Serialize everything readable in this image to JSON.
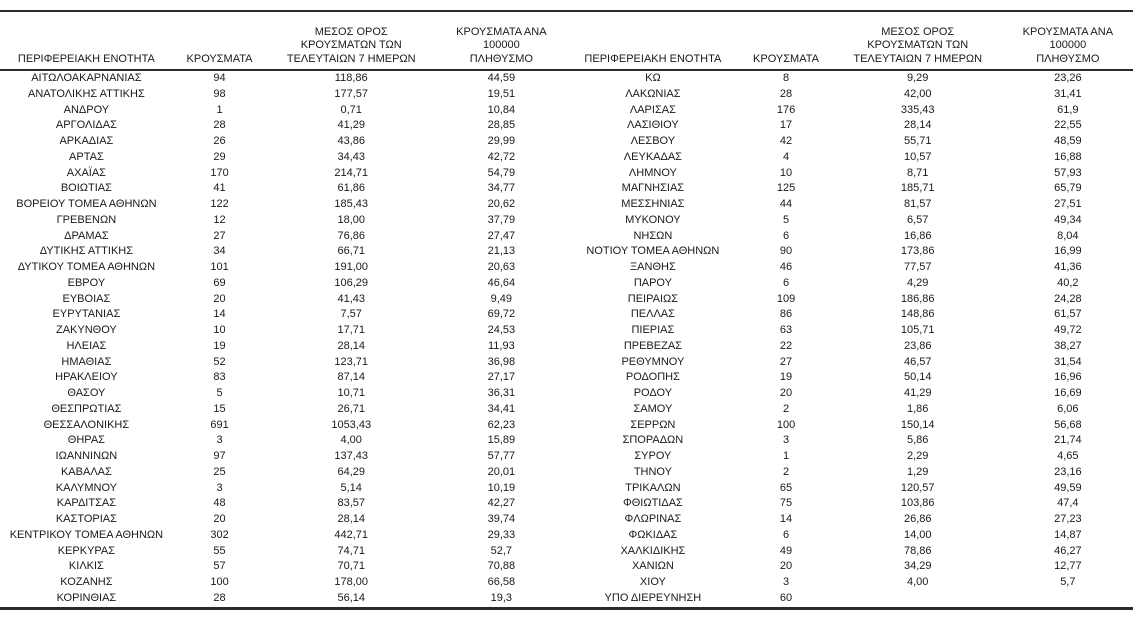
{
  "table": {
    "headers": {
      "region": "ΠΕΡΙΦΕΡΕΙΑΚΗ ΕΝΟΤΗΤΑ",
      "cases": "ΚΡΟΥΣΜΑΤΑ",
      "avg7": "ΜΕΣΟΣ ΟΡΟΣ\nΚΡΟΥΣΜΑΤΩΝ ΤΩΝ\nΤΕΛΕΥΤΑΙΩΝ 7 ΗΜΕΡΩΝ",
      "per100k": "ΚΡΟΥΣΜΑΤΑ ΑΝΑ 100000\nΠΛΗΘΥΣΜΟ"
    },
    "left_rows": [
      [
        "ΑΙΤΩΛΟΑΚΑΡΝΑΝΙΑΣ",
        "94",
        "118,86",
        "44,59"
      ],
      [
        "ΑΝΑΤΟΛΙΚΗΣ ΑΤΤΙΚΗΣ",
        "98",
        "177,57",
        "19,51"
      ],
      [
        "ΑΝΔΡΟΥ",
        "1",
        "0,71",
        "10,84"
      ],
      [
        "ΑΡΓΟΛΙΔΑΣ",
        "28",
        "41,29",
        "28,85"
      ],
      [
        "ΑΡΚΑΔΙΑΣ",
        "26",
        "43,86",
        "29,99"
      ],
      [
        "ΑΡΤΑΣ",
        "29",
        "34,43",
        "42,72"
      ],
      [
        "ΑΧΑΪΑΣ",
        "170",
        "214,71",
        "54,79"
      ],
      [
        "ΒΟΙΩΤΙΑΣ",
        "41",
        "61,86",
        "34,77"
      ],
      [
        "ΒΟΡΕΙΟΥ ΤΟΜΕΑ ΑΘΗΝΩΝ",
        "122",
        "185,43",
        "20,62"
      ],
      [
        "ΓΡΕΒΕΝΩΝ",
        "12",
        "18,00",
        "37,79"
      ],
      [
        "ΔΡΑΜΑΣ",
        "27",
        "76,86",
        "27,47"
      ],
      [
        "ΔΥΤΙΚΗΣ ΑΤΤΙΚΗΣ",
        "34",
        "66,71",
        "21,13"
      ],
      [
        "ΔΥΤΙΚΟΥ ΤΟΜΕΑ ΑΘΗΝΩΝ",
        "101",
        "191,00",
        "20,63"
      ],
      [
        "ΕΒΡΟΥ",
        "69",
        "106,29",
        "46,64"
      ],
      [
        "ΕΥΒΟΙΑΣ",
        "20",
        "41,43",
        "9,49"
      ],
      [
        "ΕΥΡΥΤΑΝΙΑΣ",
        "14",
        "7,57",
        "69,72"
      ],
      [
        "ΖΑΚΥΝΘΟΥ",
        "10",
        "17,71",
        "24,53"
      ],
      [
        "ΗΛΕΙΑΣ",
        "19",
        "28,14",
        "11,93"
      ],
      [
        "ΗΜΑΘΙΑΣ",
        "52",
        "123,71",
        "36,98"
      ],
      [
        "ΗΡΑΚΛΕΙΟΥ",
        "83",
        "87,14",
        "27,17"
      ],
      [
        "ΘΑΣΟΥ",
        "5",
        "10,71",
        "36,31"
      ],
      [
        "ΘΕΣΠΡΩΤΙΑΣ",
        "15",
        "26,71",
        "34,41"
      ],
      [
        "ΘΕΣΣΑΛΟΝΙΚΗΣ",
        "691",
        "1053,43",
        "62,23"
      ],
      [
        "ΘΗΡΑΣ",
        "3",
        "4,00",
        "15,89"
      ],
      [
        "ΙΩΑΝΝΙΝΩΝ",
        "97",
        "137,43",
        "57,77"
      ],
      [
        "ΚΑΒΑΛΑΣ",
        "25",
        "64,29",
        "20,01"
      ],
      [
        "ΚΑΛΥΜΝΟΥ",
        "3",
        "5,14",
        "10,19"
      ],
      [
        "ΚΑΡΔΙΤΣΑΣ",
        "48",
        "83,57",
        "42,27"
      ],
      [
        "ΚΑΣΤΟΡΙΑΣ",
        "20",
        "28,14",
        "39,74"
      ],
      [
        "ΚΕΝΤΡΙΚΟΥ ΤΟΜΕΑ ΑΘΗΝΩΝ",
        "302",
        "442,71",
        "29,33"
      ],
      [
        "ΚΕΡΚΥΡΑΣ",
        "55",
        "74,71",
        "52,7"
      ],
      [
        "ΚΙΛΚΙΣ",
        "57",
        "70,71",
        "70,88"
      ],
      [
        "ΚΟΖΑΝΗΣ",
        "100",
        "178,00",
        "66,58"
      ],
      [
        "ΚΟΡΙΝΘΙΑΣ",
        "28",
        "56,14",
        "19,3"
      ]
    ],
    "right_rows": [
      [
        "ΚΩ",
        "8",
        "9,29",
        "23,26"
      ],
      [
        "ΛΑΚΩΝΙΑΣ",
        "28",
        "42,00",
        "31,41"
      ],
      [
        "ΛΑΡΙΣΑΣ",
        "176",
        "335,43",
        "61,9"
      ],
      [
        "ΛΑΣΙΘΙΟΥ",
        "17",
        "28,14",
        "22,55"
      ],
      [
        "ΛΕΣΒΟΥ",
        "42",
        "55,71",
        "48,59"
      ],
      [
        "ΛΕΥΚΑΔΑΣ",
        "4",
        "10,57",
        "16,88"
      ],
      [
        "ΛΗΜΝΟΥ",
        "10",
        "8,71",
        "57,93"
      ],
      [
        "ΜΑΓΝΗΣΙΑΣ",
        "125",
        "185,71",
        "65,79"
      ],
      [
        "ΜΕΣΣΗΝΙΑΣ",
        "44",
        "81,57",
        "27,51"
      ],
      [
        "ΜΥΚΟΝΟΥ",
        "5",
        "6,57",
        "49,34"
      ],
      [
        "ΝΗΣΩΝ",
        "6",
        "16,86",
        "8,04"
      ],
      [
        "ΝΟΤΙΟΥ ΤΟΜΕΑ ΑΘΗΝΩΝ",
        "90",
        "173,86",
        "16,99"
      ],
      [
        "ΞΑΝΘΗΣ",
        "46",
        "77,57",
        "41,36"
      ],
      [
        "ΠΑΡΟΥ",
        "6",
        "4,29",
        "40,2"
      ],
      [
        "ΠΕΙΡΑΙΩΣ",
        "109",
        "186,86",
        "24,28"
      ],
      [
        "ΠΕΛΛΑΣ",
        "86",
        "148,86",
        "61,57"
      ],
      [
        "ΠΙΕΡΙΑΣ",
        "63",
        "105,71",
        "49,72"
      ],
      [
        "ΠΡΕΒΕΖΑΣ",
        "22",
        "23,86",
        "38,27"
      ],
      [
        "ΡΕΘΥΜΝΟΥ",
        "27",
        "46,57",
        "31,54"
      ],
      [
        "ΡΟΔΟΠΗΣ",
        "19",
        "50,14",
        "16,96"
      ],
      [
        "ΡΟΔΟΥ",
        "20",
        "41,29",
        "16,69"
      ],
      [
        "ΣΑΜΟΥ",
        "2",
        "1,86",
        "6,06"
      ],
      [
        "ΣΕΡΡΩΝ",
        "100",
        "150,14",
        "56,68"
      ],
      [
        "ΣΠΟΡΑΔΩΝ",
        "3",
        "5,86",
        "21,74"
      ],
      [
        "ΣΥΡΟΥ",
        "1",
        "2,29",
        "4,65"
      ],
      [
        "ΤΗΝΟΥ",
        "2",
        "1,29",
        "23,16"
      ],
      [
        "ΤΡΙΚΑΛΩΝ",
        "65",
        "120,57",
        "49,59"
      ],
      [
        "ΦΘΙΩΤΙΔΑΣ",
        "75",
        "103,86",
        "47,4"
      ],
      [
        "ΦΛΩΡΙΝΑΣ",
        "14",
        "26,86",
        "27,23"
      ],
      [
        "ΦΩΚΙΔΑΣ",
        "6",
        "14,00",
        "14,87"
      ],
      [
        "ΧΑΛΚΙΔΙΚΗΣ",
        "49",
        "78,86",
        "46,27"
      ],
      [
        "ΧΑΝΙΩΝ",
        "20",
        "34,29",
        "12,77"
      ],
      [
        "ΧΙΟΥ",
        "3",
        "4,00",
        "5,7"
      ],
      [
        "ΥΠΟ ΔΙΕΡΕΥΝΗΣΗ",
        "60",
        "",
        ""
      ]
    ],
    "colors": {
      "text": "#1a1a1a",
      "border": "#2b2b2b",
      "background": "#ffffff"
    }
  }
}
